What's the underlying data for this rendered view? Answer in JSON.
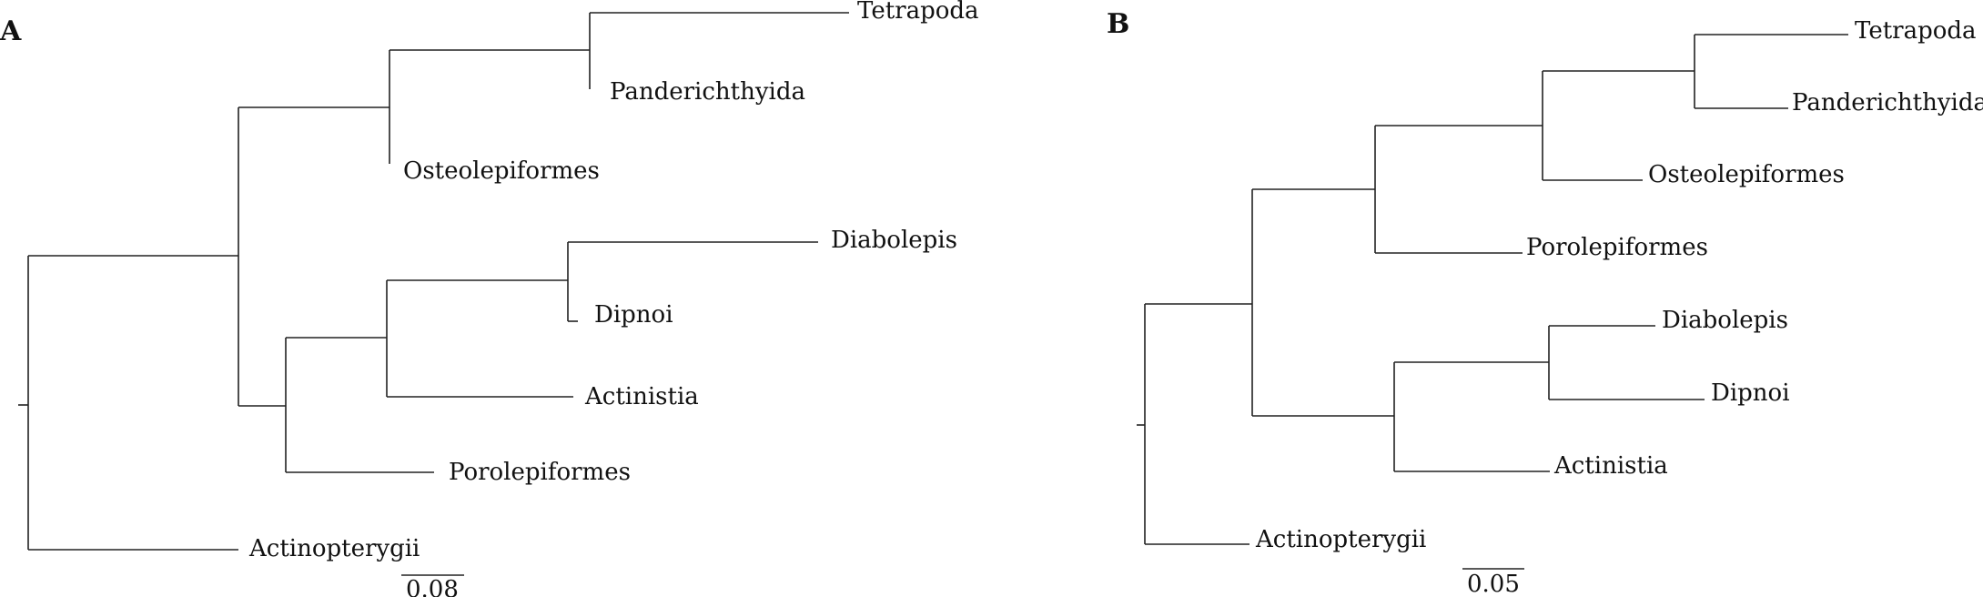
{
  "panels": [
    {
      "label": "A",
      "scale_label": "0.08",
      "tips": {
        "tetrapoda": "Tetrapoda",
        "panderichthyida": "Panderichthyida",
        "osteolepiformes": "Osteolepiformes",
        "diabolepis": "Diabolepis",
        "dipnoi": "Dipnoi",
        "actinistia": "Actinistia",
        "porolepiformes": "Porolepiformes",
        "actinopterygii": "Actinopterygii"
      }
    },
    {
      "label": "B",
      "scale_label": "0.05",
      "tips": {
        "tetrapoda": "Tetrapoda",
        "panderichthyida": "Panderichthyida",
        "osteolepiformes": "Osteolepiformes",
        "porolepiformes": "Porolepiformes",
        "diabolepis": "Diabolepis",
        "dipnoi": "Dipnoi",
        "actinistia": "Actinistia",
        "actinopterygii": "Actinopterygii"
      }
    }
  ]
}
